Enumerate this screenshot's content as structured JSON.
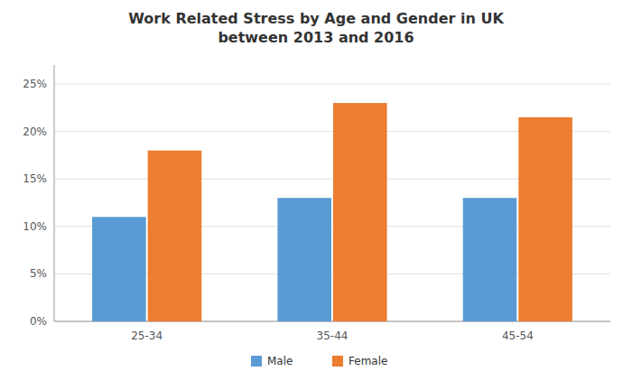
{
  "chart_data": {
    "type": "bar",
    "title": "Work Related Stress by Age and Gender in UK\nbetween 2013 and 2016",
    "categories": [
      "25-34",
      "35-44",
      "45-54"
    ],
    "series": [
      {
        "name": "Male",
        "color": "#5B9BD5",
        "values": [
          0.11,
          0.13,
          0.13
        ]
      },
      {
        "name": "Female",
        "color": "#ED7D31",
        "values": [
          0.18,
          0.23,
          0.215
        ]
      }
    ],
    "ylim": [
      0,
      0.27
    ],
    "yticks": [
      {
        "value": 0,
        "label": "0%"
      },
      {
        "value": 0.05,
        "label": "5%"
      },
      {
        "value": 0.1,
        "label": "10%"
      },
      {
        "value": 0.15,
        "label": "15%"
      },
      {
        "value": 0.2,
        "label": "20%"
      },
      {
        "value": 0.25,
        "label": "25%"
      }
    ],
    "grid": true,
    "legend": "bottom"
  }
}
